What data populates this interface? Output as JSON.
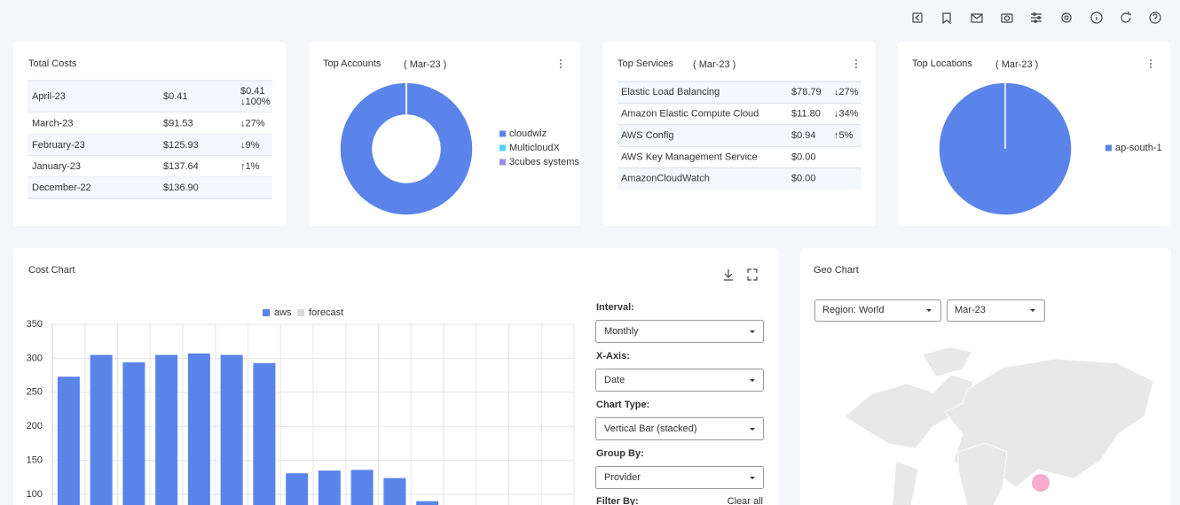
{
  "total_costs": {
    "title": "Total Costs",
    "rows": [
      [
        "April-23",
        "$0.41",
        "$0.41",
        "↓100%"
      ],
      [
        "March-23",
        "$91.53",
        "↓27%"
      ],
      [
        "February-23",
        "$125.93",
        "↓9%"
      ],
      [
        "January-23",
        "$137.64",
        "↑1%"
      ],
      [
        "December-22",
        "$136.90"
      ]
    ]
  },
  "top_services": {
    "rows": [
      [
        "Elastic Load Balancing",
        "$78.79",
        "↓27%"
      ],
      [
        "Amazon Elastic Compute Cloud",
        "$11.80",
        "↓34%"
      ],
      [
        "AWS Config",
        "$0.94",
        "↑5%"
      ],
      [
        "AWS Key Management Service",
        "$0.00"
      ],
      [
        "AmazonCloudWatch",
        "$0.00"
      ]
    ],
    "title": "Top Services",
    "subtitle": "( Mar-23 )"
  },
  "chart_data": [
    {
      "type": "donut",
      "title": "Top Accounts",
      "subtitle": "( Mar-23 )",
      "categories": [
        "cloudwiz",
        "MulticloudX",
        "3cubes systems"
      ],
      "values": [
        100,
        0,
        0
      ],
      "colors": [
        "#5b84ea",
        "#4dd6e8",
        "#9b8ce8"
      ]
    },
    {
      "type": "pie",
      "title": "Top Locations",
      "subtitle": "( Mar-23 )",
      "categories": [
        "ap-south-1"
      ],
      "values": [
        100
      ],
      "colors": [
        "#5b84ea"
      ]
    },
    {
      "type": "bar",
      "title": "Cost Chart",
      "categories": [
        null,
        null,
        null,
        null,
        null,
        null,
        null,
        null,
        null,
        null,
        null,
        null,
        null,
        null,
        null,
        null
      ],
      "series": [
        {
          "name": "aws",
          "color": "#5b84ea",
          "values": [
            273,
            305,
            294,
            305,
            307,
            305,
            293,
            131,
            135,
            136,
            124,
            90,
            null,
            null,
            null,
            null
          ]
        },
        {
          "name": "forecast",
          "color": "#d9d9d9",
          "values": [
            null,
            null,
            null,
            null,
            null,
            null,
            null,
            null,
            null,
            null,
            null,
            null,
            null,
            null,
            null,
            null
          ]
        }
      ],
      "ylim": [
        0,
        350
      ],
      "yticks": [
        100,
        150,
        200,
        250,
        300,
        350
      ],
      "grid": true,
      "stacked": true
    }
  ],
  "controls": {
    "fields": [
      {
        "label": "Interval:",
        "value": "Monthly"
      },
      {
        "label": "X-Axis:",
        "value": "Date"
      },
      {
        "label": "Chart Type:",
        "value": "Vertical Bar (stacked)"
      },
      {
        "label": "Group By:",
        "value": "Provider"
      }
    ],
    "filter_label": "Filter By:",
    "clear": "Clear all"
  },
  "geo": {
    "title": "Geo Chart",
    "region": "Region: World",
    "period": "Mar-23"
  }
}
